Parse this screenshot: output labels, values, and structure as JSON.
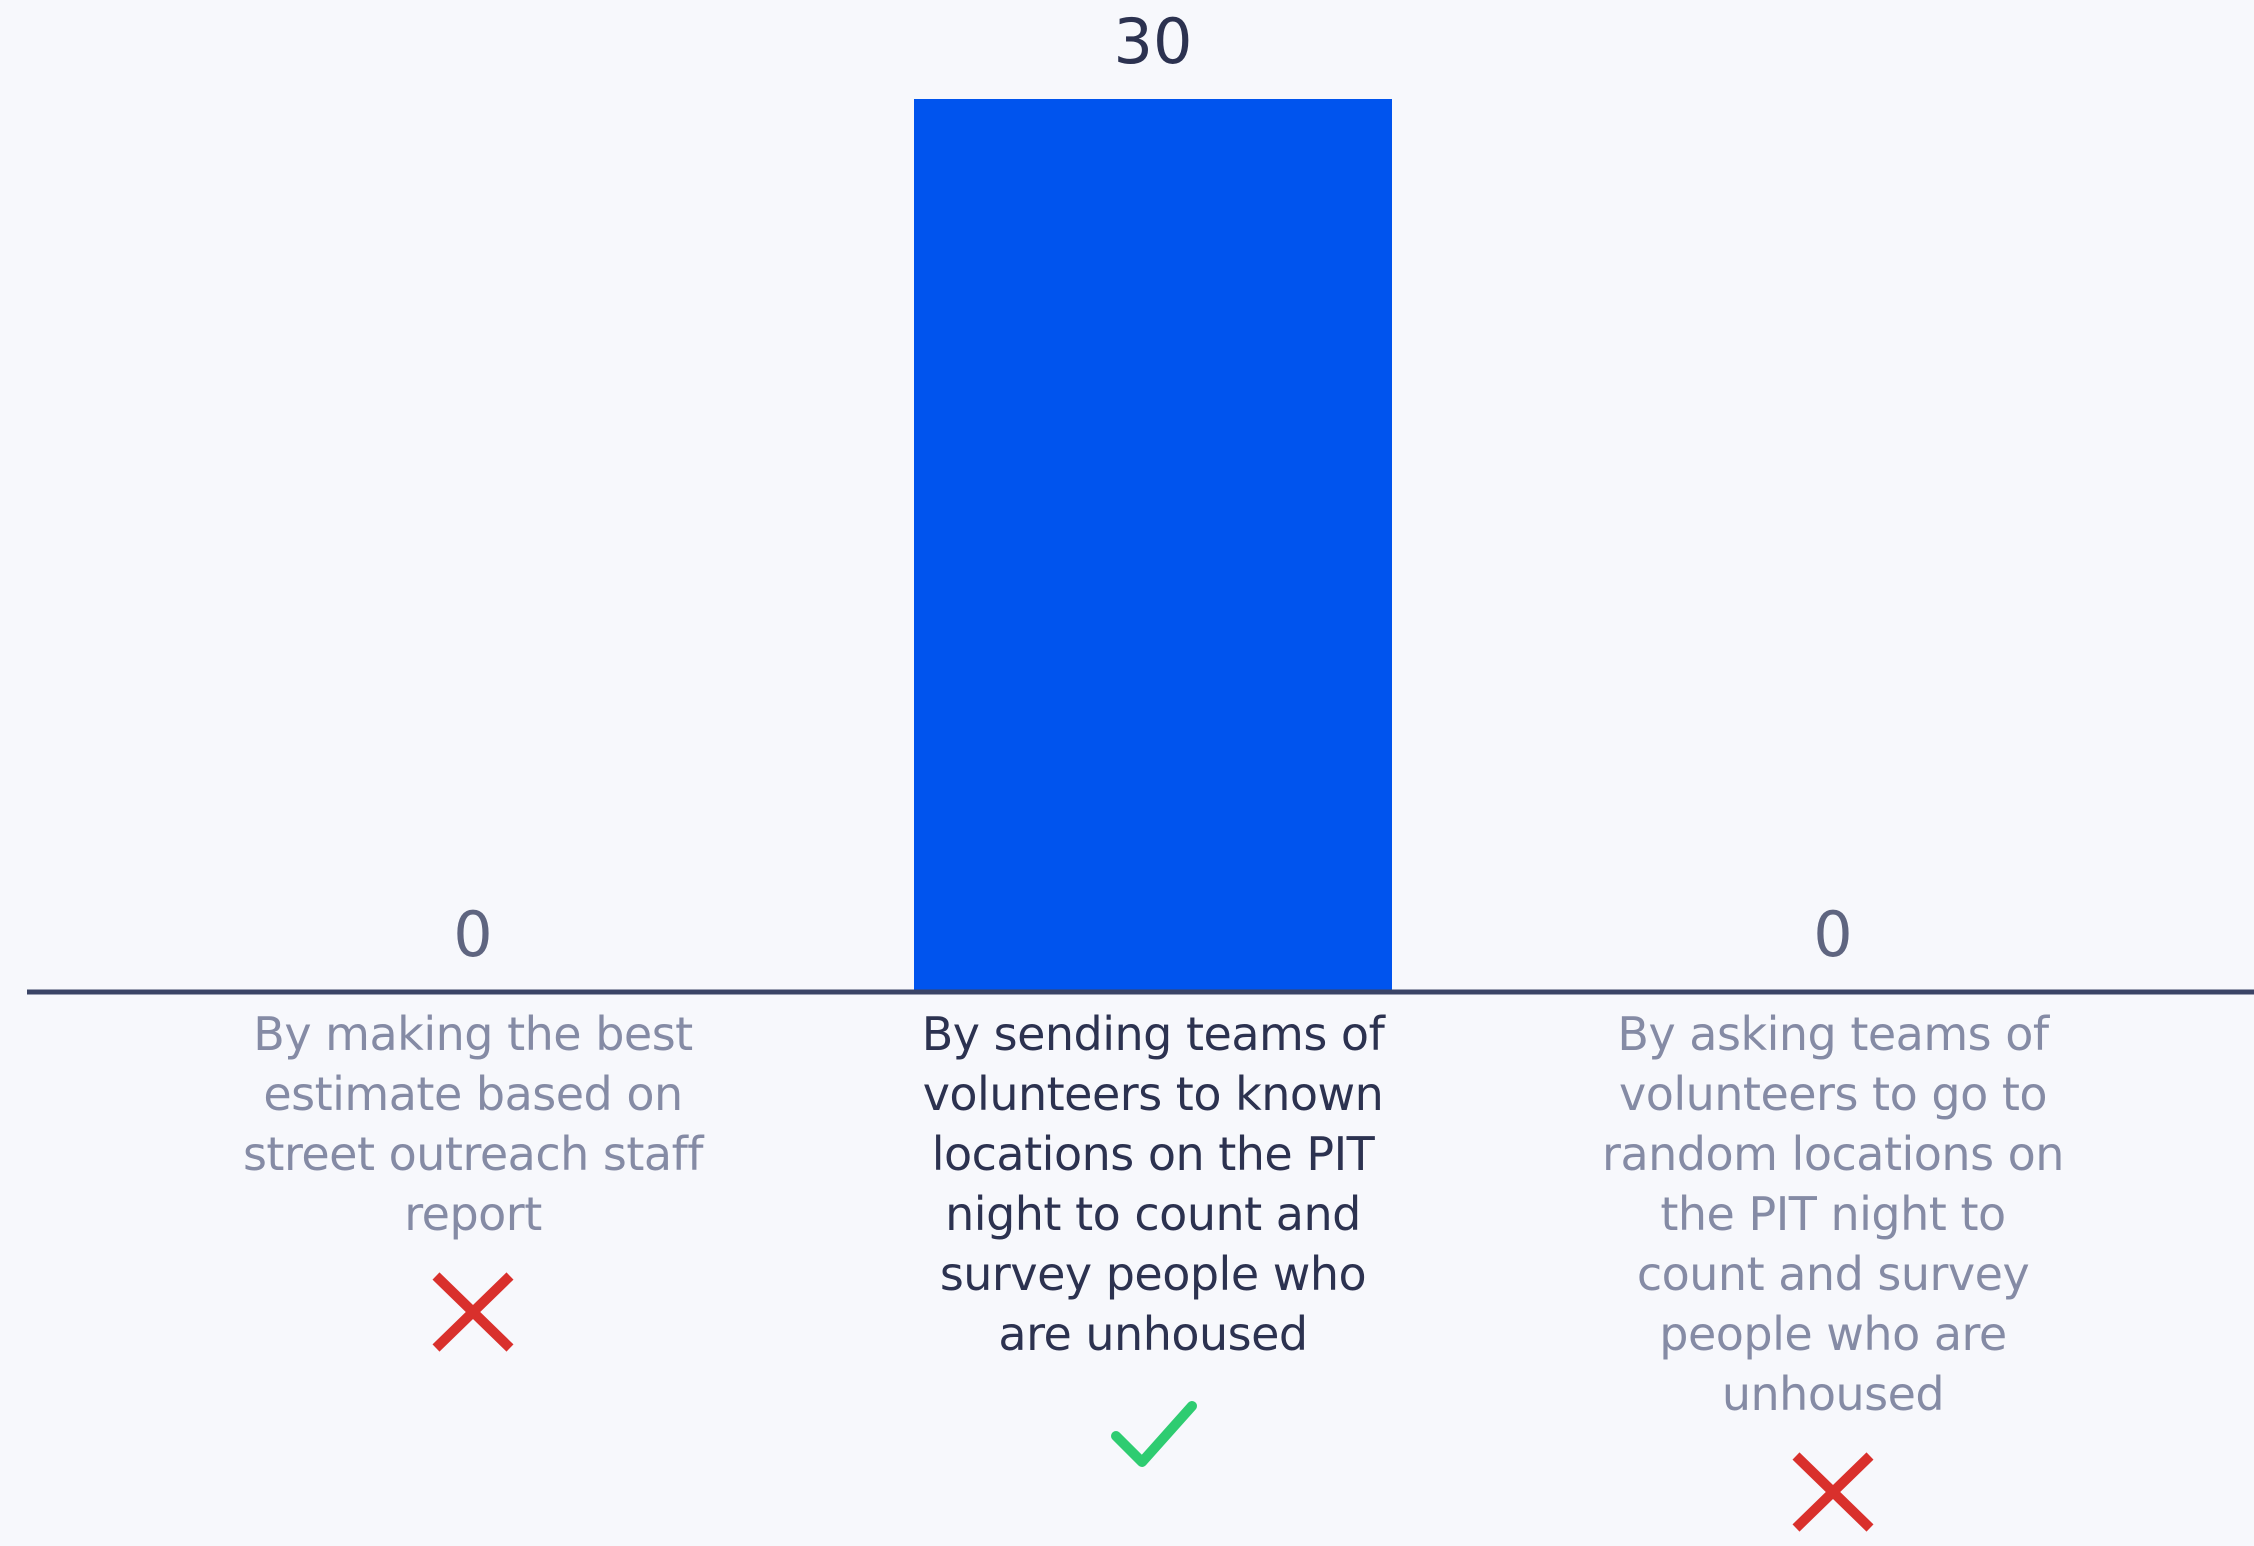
{
  "chart_data": {
    "type": "bar",
    "categories": [
      "By making the best estimate based on street outreach staff report",
      "By sending teams of volunteers to known locations on the PIT night to count and survey people who are unhoused",
      "By asking teams of volunteers to go to random locations on the PIT night to count and survey people who are unhoused"
    ],
    "values": [
      0,
      30,
      0
    ],
    "correct": [
      false,
      true,
      false
    ],
    "color": "#0054ee"
  }
}
